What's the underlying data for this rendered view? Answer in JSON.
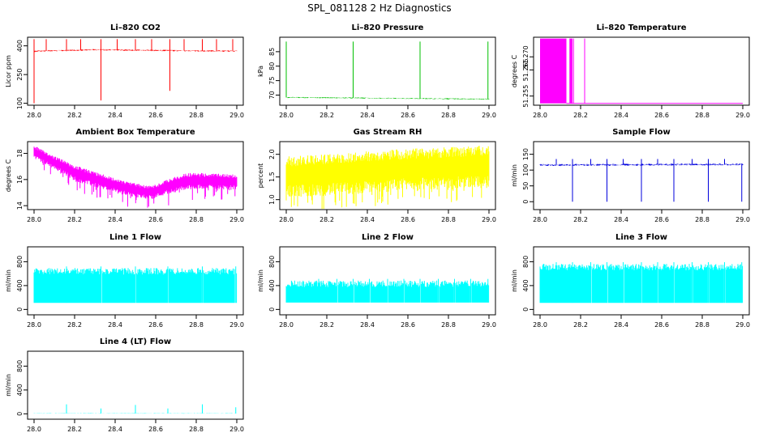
{
  "figure": {
    "title": "SPL_081128  2 Hz Diagnostics"
  },
  "chart_data": [
    {
      "type": "line",
      "title": "Li–820 CO2",
      "ylabel": "Licor ppm",
      "color": "#ff0000",
      "style": "spiky",
      "xlim": [
        28.0,
        29.0
      ],
      "ylim": [
        90,
        445
      ],
      "xticks": [
        28.0,
        28.2,
        28.4,
        28.6,
        28.8,
        29.0
      ],
      "xtick_labels": [
        "28.0",
        "28.2",
        "28.4",
        "28.6",
        "28.8",
        "29.0"
      ],
      "yticks": [
        100,
        250,
        400
      ],
      "ytick_labels": [
        "100",
        "250",
        "400"
      ],
      "series": [
        {
          "name": "CO2",
          "baseline": 375,
          "noise": 5,
          "trend": [
            [
              28.0,
              372
            ],
            [
              28.3,
              380
            ],
            [
              28.7,
              375
            ],
            [
              29.0,
              372
            ]
          ],
          "spikes_up": [
            28.0,
            28.06,
            28.16,
            28.23,
            28.33,
            28.41,
            28.5,
            28.58,
            28.67,
            28.74,
            28.83,
            28.9,
            28.98
          ],
          "spike_up_to": 435,
          "spikes_down": [
            [
              28.0,
              100
            ],
            [
              28.33,
              115
            ],
            [
              28.67,
              165
            ]
          ]
        }
      ]
    },
    {
      "type": "line",
      "title": "Li–820 Pressure",
      "ylabel": "kPa",
      "color": "#00c000",
      "style": "spiky",
      "xlim": [
        28.0,
        29.0
      ],
      "ylim": [
        66.5,
        90
      ],
      "xticks": [
        28.0,
        28.2,
        28.4,
        28.6,
        28.8,
        29.0
      ],
      "xtick_labels": [
        "28.0",
        "28.2",
        "28.4",
        "28.6",
        "28.8",
        "29.0"
      ],
      "yticks": [
        70,
        75,
        80,
        85
      ],
      "ytick_labels": [
        "70",
        "75",
        "80",
        "85"
      ],
      "series": [
        {
          "name": "Pressure",
          "baseline": 68.8,
          "noise": 0.25,
          "trend": [
            [
              28.0,
              69.2
            ],
            [
              29.0,
              68.6
            ]
          ],
          "spikes_up": [
            28.0,
            28.33,
            28.66,
            28.995
          ],
          "spike_up_to": 88.5,
          "spikes_down": []
        }
      ]
    },
    {
      "type": "area",
      "title": "Li–820 Temperature",
      "ylabel": "degrees C",
      "color": "#ff00ff",
      "style": "flag",
      "xlim": [
        28.0,
        29.0
      ],
      "ylim": [
        51.2515,
        51.2775
      ],
      "xticks": [
        28.0,
        28.2,
        28.4,
        28.6,
        28.8,
        29.0
      ],
      "xtick_labels": [
        "28.0",
        "28.2",
        "28.4",
        "28.6",
        "28.8",
        "29.0"
      ],
      "yticks": [
        51.255,
        51.265,
        51.27
      ],
      "ytick_labels": [
        "51.255",
        "51.265",
        "51.270"
      ],
      "series": [
        {
          "name": "Temperature",
          "low": 51.2522,
          "high": 51.277,
          "blocks": [
            [
              28.0,
              28.13
            ],
            [
              28.145,
              28.16
            ]
          ],
          "lines": [
            28.165,
            28.22
          ]
        }
      ]
    },
    {
      "type": "line",
      "title": "Ambient Box Temperature",
      "ylabel": "degrees C",
      "color": "#ff00ff",
      "style": "band",
      "xlim": [
        28.0,
        29.0
      ],
      "ylim": [
        13.7,
        18.9
      ],
      "xticks": [
        28.0,
        28.2,
        28.4,
        28.6,
        28.8,
        29.0
      ],
      "xtick_labels": [
        "28.0",
        "28.2",
        "28.4",
        "28.6",
        "28.8",
        "29.0"
      ],
      "yticks": [
        14,
        16,
        18
      ],
      "ytick_labels": [
        "14",
        "16",
        "18"
      ],
      "series": [
        {
          "name": "Box temperature",
          "upper": [
            [
              28.0,
              18.6
            ],
            [
              28.1,
              17.8
            ],
            [
              28.2,
              17.1
            ],
            [
              28.3,
              16.6
            ],
            [
              28.4,
              16.1
            ],
            [
              28.5,
              15.7
            ],
            [
              28.58,
              15.5
            ],
            [
              28.66,
              16.0
            ],
            [
              28.75,
              16.5
            ],
            [
              28.85,
              16.5
            ],
            [
              29.0,
              16.4
            ]
          ],
          "lower": [
            [
              28.0,
              17.6
            ],
            [
              28.1,
              16.8
            ],
            [
              28.2,
              15.9
            ],
            [
              28.3,
              15.4
            ],
            [
              28.4,
              15.0
            ],
            [
              28.5,
              14.6
            ],
            [
              28.58,
              14.5
            ],
            [
              28.66,
              14.9
            ],
            [
              28.75,
              15.2
            ],
            [
              28.85,
              15.3
            ],
            [
              29.0,
              15.2
            ]
          ],
          "dips": 0.9
        }
      ]
    },
    {
      "type": "line",
      "title": "Gas Stream RH",
      "ylabel": "percent",
      "color": "#ffff00",
      "style": "band",
      "xlim": [
        28.0,
        29.0
      ],
      "ylim": [
        0.78,
        2.28
      ],
      "xticks": [
        28.0,
        28.2,
        28.4,
        28.6,
        28.8,
        29.0
      ],
      "xtick_labels": [
        "28.0",
        "28.2",
        "28.4",
        "28.6",
        "28.8",
        "29.0"
      ],
      "yticks": [
        1.0,
        1.5,
        2.0
      ],
      "ytick_labels": [
        "1.0",
        "1.5",
        "2.0"
      ],
      "series": [
        {
          "name": "RH",
          "upper": [
            [
              28.0,
              1.95
            ],
            [
              28.3,
              2.05
            ],
            [
              28.6,
              2.12
            ],
            [
              29.0,
              2.2
            ]
          ],
          "lower": [
            [
              28.0,
              1.05
            ],
            [
              28.3,
              1.1
            ],
            [
              28.6,
              1.2
            ],
            [
              29.0,
              1.25
            ]
          ],
          "dips": 0.3
        }
      ]
    },
    {
      "type": "line",
      "title": "Sample Flow",
      "ylabel": "ml/min",
      "color": "#0000dd",
      "style": "spiky",
      "xlim": [
        28.0,
        29.0
      ],
      "ylim": [
        -25,
        190
      ],
      "xticks": [
        28.0,
        28.2,
        28.4,
        28.6,
        28.8,
        29.0
      ],
      "xtick_labels": [
        "28.0",
        "28.2",
        "28.4",
        "28.6",
        "28.8",
        "29.0"
      ],
      "yticks": [
        0,
        50,
        100,
        150
      ],
      "ytick_labels": [
        "0",
        "50",
        "100",
        "150"
      ],
      "series": [
        {
          "name": "Flow",
          "baseline": 118,
          "noise": 4,
          "trend": [
            [
              28.0,
              116
            ],
            [
              29.0,
              118
            ]
          ],
          "spikes_up": [
            28.08,
            28.16,
            28.25,
            28.33,
            28.41,
            28.5,
            28.58,
            28.66,
            28.75,
            28.83,
            28.91
          ],
          "spike_up_to": 135,
          "spikes_down": [
            [
              28.16,
              0
            ],
            [
              28.33,
              0
            ],
            [
              28.5,
              0
            ],
            [
              28.66,
              0
            ],
            [
              28.83,
              0
            ],
            [
              28.995,
              0
            ]
          ]
        }
      ]
    },
    {
      "type": "line",
      "title": "Line 1 Flow",
      "ylabel": "ml/min",
      "color": "#00ffff",
      "style": "block",
      "xlim": [
        28.0,
        29.0
      ],
      "ylim": [
        -90,
        1050
      ],
      "xticks": [
        28.0,
        28.2,
        28.4,
        28.6,
        28.8,
        29.0
      ],
      "xtick_labels": [
        "28.0",
        "28.2",
        "28.4",
        "28.6",
        "28.8",
        "29.0"
      ],
      "yticks": [
        0,
        400,
        800
      ],
      "ytick_labels": [
        "0",
        "400",
        "800"
      ],
      "series": [
        {
          "name": "Line 1",
          "low": 110,
          "high": 640,
          "gaps": [
            28.16,
            28.33,
            28.5,
            28.66,
            28.83,
            28.995
          ]
        }
      ]
    },
    {
      "type": "line",
      "title": "Line 2 Flow",
      "ylabel": "ml/min",
      "color": "#00ffff",
      "style": "block",
      "xlim": [
        28.0,
        29.0
      ],
      "ylim": [
        -90,
        1050
      ],
      "xticks": [
        28.0,
        28.2,
        28.4,
        28.6,
        28.8,
        29.0
      ],
      "xtick_labels": [
        "28.0",
        "28.2",
        "28.4",
        "28.6",
        "28.8",
        "29.0"
      ],
      "yticks": [
        0,
        400,
        800
      ],
      "ytick_labels": [
        "0",
        "400",
        "800"
      ],
      "series": [
        {
          "name": "Line 2",
          "low": 115,
          "high": 430,
          "gaps": [
            28.16,
            28.25,
            28.33,
            28.41,
            28.5,
            28.58,
            28.66,
            28.75,
            28.83,
            28.91,
            28.995
          ]
        }
      ]
    },
    {
      "type": "line",
      "title": "Line 3 Flow",
      "ylabel": "ml/min",
      "color": "#00ffff",
      "style": "block",
      "xlim": [
        28.0,
        29.0
      ],
      "ylim": [
        -90,
        1050
      ],
      "xticks": [
        28.0,
        28.2,
        28.4,
        28.6,
        28.8,
        29.0
      ],
      "xtick_labels": [
        "28.0",
        "28.2",
        "28.4",
        "28.6",
        "28.8",
        "29.0"
      ],
      "yticks": [
        0,
        400,
        800
      ],
      "ytick_labels": [
        "0",
        "400",
        "800"
      ],
      "series": [
        {
          "name": "Line 3",
          "low": 110,
          "high": 710,
          "gaps": [
            28.08,
            28.16,
            28.25,
            28.33,
            28.41,
            28.5,
            28.58,
            28.66,
            28.75,
            28.83,
            28.91,
            28.995
          ]
        }
      ]
    },
    {
      "type": "line",
      "title": "Line 4 (LT) Flow",
      "ylabel": "ml/min",
      "color": "#00ffff",
      "style": "spiky",
      "xlim": [
        28.0,
        29.0
      ],
      "ylim": [
        -90,
        1050
      ],
      "xticks": [
        28.0,
        28.2,
        28.4,
        28.6,
        28.8,
        29.0
      ],
      "xtick_labels": [
        "28.0",
        "28.2",
        "28.4",
        "28.6",
        "28.8",
        "29.0"
      ],
      "yticks": [
        0,
        400,
        800
      ],
      "ytick_labels": [
        "0",
        "400",
        "800"
      ],
      "series": [
        {
          "name": "Line 4",
          "baseline": 8,
          "noise": 5,
          "trend": [
            [
              28.0,
              8
            ],
            [
              29.0,
              8
            ]
          ],
          "spikes_up": [
            28.16,
            28.33,
            28.5,
            28.66,
            28.83,
            28.995
          ],
          "spike_up_heights": [
            160,
            90,
            150,
            90,
            160,
            110
          ],
          "spikes_down": []
        }
      ]
    }
  ]
}
